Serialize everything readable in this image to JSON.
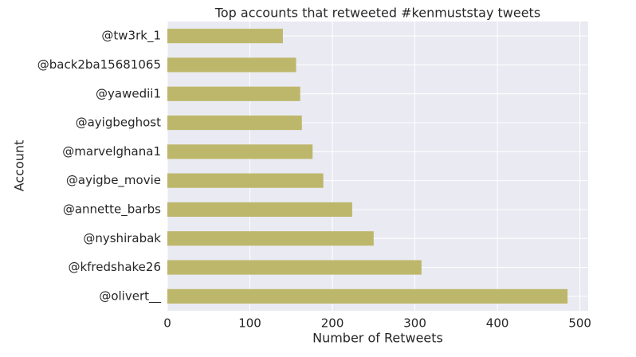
{
  "chart_data": {
    "type": "barh",
    "title": "Top accounts that retweeted #kenmuststay tweets",
    "xlabel": "Number of Retweets",
    "ylabel": "Account",
    "categories": [
      "@tw3rk_1",
      "@back2ba15681065",
      "@yawedii1",
      "@ayigbeghost",
      "@marvelghana1",
      "@ayigbe_movie",
      "@annette_barbs",
      "@nyshirabak",
      "@kfredshake26",
      "@olivert__"
    ],
    "values": [
      140,
      156,
      161,
      163,
      176,
      189,
      224,
      250,
      308,
      485
    ],
    "color": "#bdb76b",
    "xlim": [
      0,
      510
    ],
    "xticks": [
      0,
      100,
      200,
      300,
      400,
      500
    ],
    "grid": true
  }
}
